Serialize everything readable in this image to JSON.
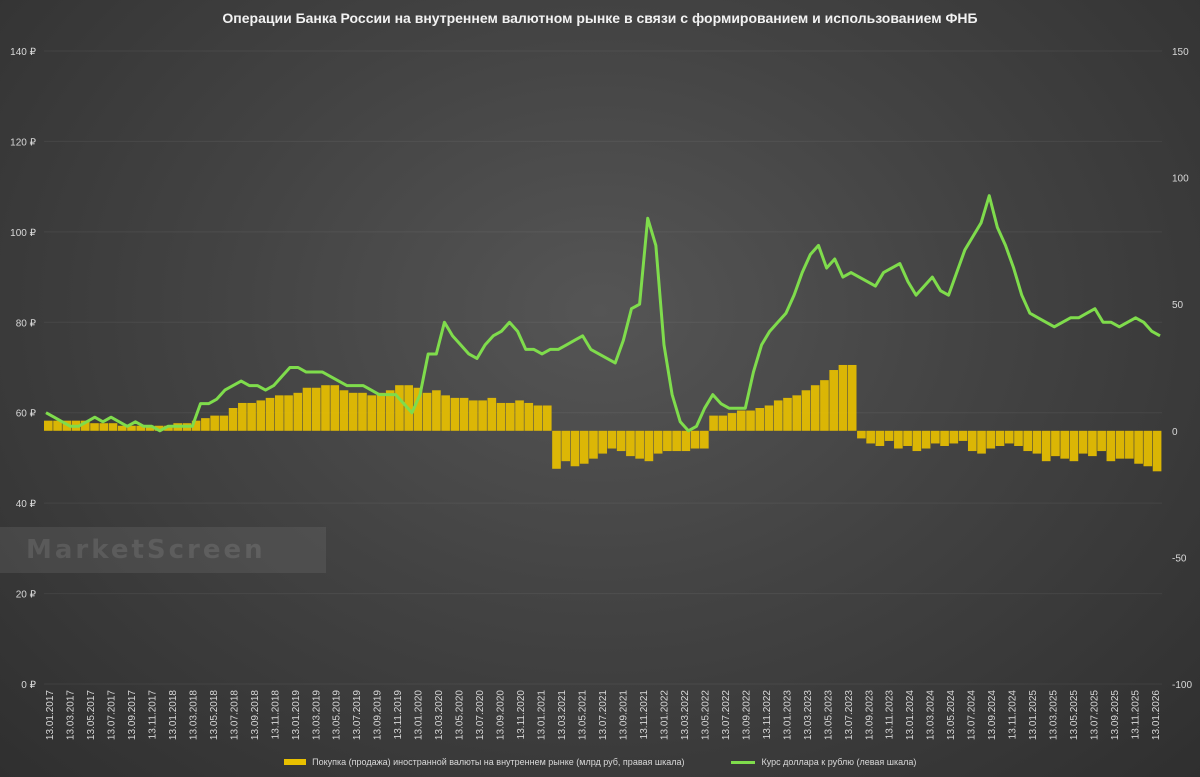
{
  "chart_data": {
    "type": "bar+line",
    "title": "Операции Банка России на внутреннем валютном рынке в связи с формированием и использованием ФНБ",
    "left_axis": {
      "min": 0,
      "max": 140,
      "step": 20,
      "labels": [
        "0 ₽",
        "20 ₽",
        "40 ₽",
        "60 ₽",
        "80 ₽",
        "100 ₽",
        "120 ₽",
        "140 ₽"
      ]
    },
    "right_axis": {
      "min": -100,
      "max": 150,
      "step": 50,
      "labels": [
        "-100",
        "-50",
        "0",
        "50",
        "100",
        "150"
      ]
    },
    "x_labels": [
      "13.01.2017",
      "13.03.2017",
      "13.05.2017",
      "13.07.2017",
      "13.09.2017",
      "13.11.2017",
      "13.01.2018",
      "13.03.2018",
      "13.05.2018",
      "13.07.2018",
      "13.09.2018",
      "13.11.2018",
      "13.01.2019",
      "13.03.2019",
      "13.05.2019",
      "13.07.2019",
      "13.09.2019",
      "13.11.2019",
      "13.01.2020",
      "13.03.2020",
      "13.05.2020",
      "13.07.2020",
      "13.09.2020",
      "13.11.2020",
      "13.01.2021",
      "13.03.2021",
      "13.05.2021",
      "13.07.2021",
      "13.09.2021",
      "13.11.2021",
      "13.01.2022",
      "13.03.2022",
      "13.05.2022",
      "13.07.2022",
      "13.09.2022",
      "13.11.2022",
      "13.01.2023",
      "13.03.2023",
      "13.05.2023",
      "13.07.2023",
      "13.09.2023",
      "13.11.2023",
      "13.01.2024",
      "13.03.2024",
      "13.05.2024",
      "13.07.2024",
      "13.09.2024",
      "13.11.2024",
      "13.01.2025",
      "13.03.2025",
      "13.05.2025",
      "13.07.2025",
      "13.09.2025",
      "13.11.2025",
      "13.01.2026"
    ],
    "series": [
      {
        "name": "Покупка (продажа) иностранной валюты на внутреннем рынке (млрд руб, правая шкала)",
        "type": "bar",
        "axis": "right",
        "color": "#e8c000",
        "values": [
          4,
          4,
          4,
          4,
          4,
          3,
          3,
          3,
          2,
          2,
          2,
          2,
          2,
          2,
          3,
          3,
          4,
          5,
          6,
          6,
          9,
          11,
          11,
          12,
          13,
          14,
          14,
          15,
          17,
          17,
          18,
          18,
          16,
          15,
          15,
          14,
          15,
          16,
          18,
          18,
          17,
          15,
          16,
          14,
          13,
          13,
          12,
          12,
          13,
          11,
          11,
          12,
          11,
          10,
          10,
          -15,
          -12,
          -14,
          -13,
          -11,
          -9,
          -7,
          -8,
          -10,
          -11,
          -12,
          -9,
          -8,
          -8,
          -8,
          -7,
          -7,
          6,
          6,
          7,
          8,
          8,
          9,
          10,
          12,
          13,
          14,
          16,
          18,
          20,
          24,
          26,
          26,
          -3,
          -5,
          -6,
          -4,
          -7,
          -6,
          -8,
          -7,
          -5,
          -6,
          -5,
          -4,
          -8,
          -9,
          -7,
          -6,
          -5,
          -6,
          -8,
          -9,
          -12,
          -10,
          -11,
          -12,
          -9,
          -10,
          -8,
          -12,
          -11,
          -11,
          -13,
          -14,
          -16
        ],
        "monthly_bars": true
      },
      {
        "name": "Курс доллара к рублю (левая шкала)",
        "type": "line",
        "axis": "left",
        "color": "#7fdc4c",
        "values": [
          60,
          59,
          58,
          57,
          57,
          58,
          59,
          58,
          59,
          58,
          57,
          58,
          57,
          57,
          56,
          57,
          57,
          57,
          57,
          62,
          62,
          63,
          65,
          66,
          67,
          66,
          66,
          65,
          66,
          68,
          70,
          70,
          69,
          69,
          69,
          68,
          67,
          66,
          66,
          66,
          65,
          64,
          64,
          64,
          62,
          60,
          64,
          73,
          73,
          80,
          77,
          75,
          73,
          72,
          75,
          77,
          78,
          80,
          78,
          74,
          74,
          73,
          74,
          74,
          75,
          76,
          77,
          74,
          73,
          72,
          71,
          76,
          83,
          84,
          103,
          97,
          75,
          64,
          58,
          56,
          57,
          61,
          64,
          62,
          61,
          61,
          61,
          69,
          75,
          78,
          80,
          82,
          86,
          91,
          95,
          97,
          92,
          94,
          90,
          91,
          90,
          89,
          88,
          91,
          92,
          93,
          89,
          86,
          88,
          90,
          87,
          86,
          91,
          96,
          99,
          102,
          108,
          101,
          97,
          92,
          86,
          82,
          81,
          80,
          79,
          80,
          81,
          81,
          82,
          83,
          80,
          80,
          79,
          80,
          81,
          80,
          78,
          77
        ]
      }
    ],
    "legend_position": "bottom"
  },
  "watermark": "MarketScreen"
}
